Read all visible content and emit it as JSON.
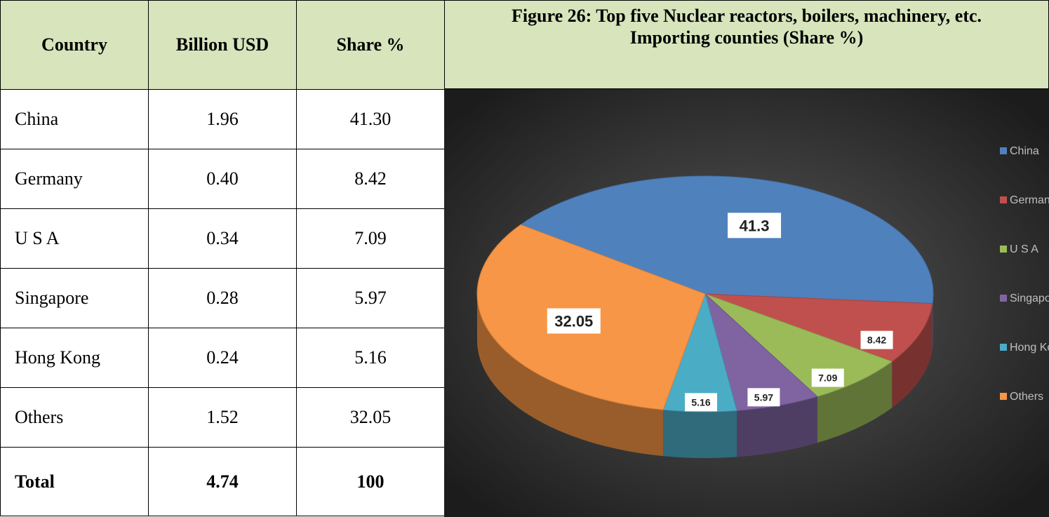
{
  "table": {
    "header": [
      "Country",
      "Billion USD",
      "Share %"
    ],
    "rows": [
      [
        "China",
        "1.96",
        "41.30"
      ],
      [
        "Germany",
        "0.40",
        "8.42"
      ],
      [
        "U S A",
        "0.34",
        "7.09"
      ],
      [
        "Singapore",
        "0.28",
        "5.97"
      ],
      [
        "Hong Kong",
        "0.24",
        "5.16"
      ],
      [
        "Others",
        "1.52",
        "32.05"
      ]
    ],
    "total": [
      "Total",
      "4.74",
      "100"
    ]
  },
  "chart_data": {
    "type": "pie",
    "title": [
      "Figure 26: Top five Nuclear reactors, boilers, machinery, etc.",
      "Importing counties (Share %)"
    ],
    "categories": [
      "China",
      "Germany",
      "U S A",
      "Singapore",
      "Hong Kong",
      "Others"
    ],
    "values": [
      41.3,
      8.42,
      7.09,
      5.97,
      5.16,
      32.05
    ],
    "colors": [
      "#4f81bd",
      "#c0504d",
      "#9bbb59",
      "#8064a2",
      "#4bacc6",
      "#f79646"
    ],
    "legend": "right"
  }
}
